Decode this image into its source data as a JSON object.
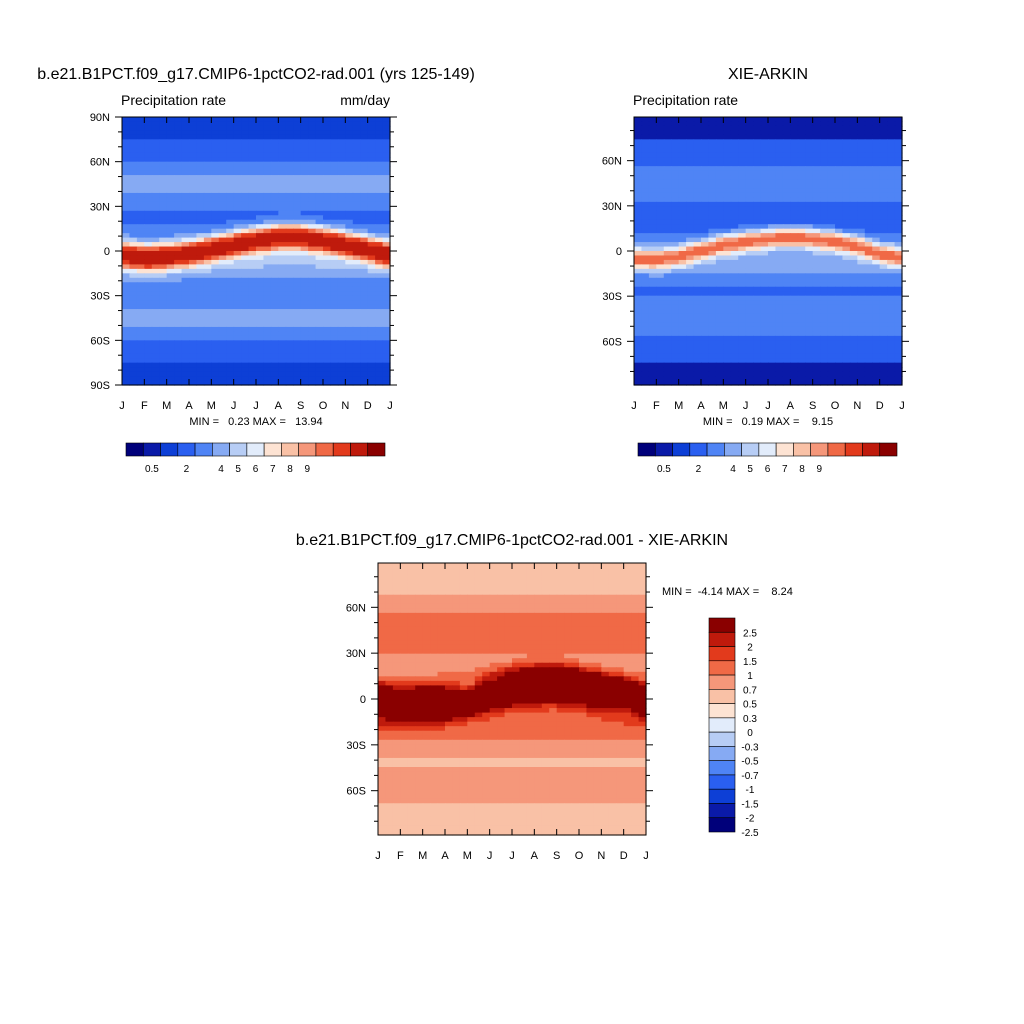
{
  "figure": {
    "panel_model": {
      "title": "b.e21.B1PCT.f09_g17.CMIP6-1pctCO2-rad.001 (yrs 125-149)",
      "left_label": "Precipitation rate",
      "right_label": "mm/day",
      "stats": "MIN =   0.23 MAX =   13.94"
    },
    "panel_obs": {
      "title": "XIE-ARKIN",
      "left_label": "Precipitation rate",
      "stats": "MIN =   0.19 MAX =    9.15"
    },
    "panel_diff": {
      "title": "b.e21.B1PCT.f09_g17.CMIP6-1pctCO2-rad.001 - XIE-ARKIN",
      "stats": "MIN =  -4.14 MAX =    8.24"
    }
  },
  "chart_data": [
    {
      "type": "heatmap",
      "name": "model",
      "title": "b.e21.B1PCT.f09_g17.CMIP6-1pctCO2-rad.001 (yrs 125-149)",
      "subtitle_left": "Precipitation rate",
      "units": "mm/day",
      "x_tick_labels": [
        "J",
        "F",
        "M",
        "A",
        "M",
        "J",
        "J",
        "A",
        "S",
        "O",
        "N",
        "D",
        "J"
      ],
      "y_range": [
        -90,
        90
      ],
      "y_ticks": [
        90,
        60,
        30,
        0,
        -30,
        -60,
        -90
      ],
      "y_tick_labels": [
        "90N",
        "60N",
        "30N",
        "0",
        "30S",
        "60S",
        "90S"
      ],
      "colorbar_tick_labels": [
        "0.5",
        "2",
        "4",
        "5",
        "6",
        "7",
        "8",
        "9"
      ],
      "colorbar_levels": [
        0.2,
        0.5,
        1,
        2,
        3,
        4,
        5,
        6,
        7,
        8,
        9,
        10,
        12
      ],
      "colors": [
        "#00007a",
        "#0a1aa8",
        "#0d3fd6",
        "#2a5ff0",
        "#4f84f5",
        "#86aaf3",
        "#b7cdf5",
        "#e2ecfb",
        "#fde3d3",
        "#f9c1a6",
        "#f5977a",
        "#f06946",
        "#e23a1c",
        "#bf1a0c",
        "#8a0000"
      ],
      "min": 0.23,
      "max": 13.94,
      "itcz_center_by_month": [
        -3,
        -5,
        -4,
        -2,
        1,
        4,
        7,
        9,
        9,
        7,
        4,
        1,
        -3
      ],
      "itcz_peak": 13.5
    },
    {
      "type": "heatmap",
      "name": "observations",
      "title": "XIE-ARKIN",
      "subtitle_left": "Precipitation rate",
      "x_tick_labels": [
        "J",
        "F",
        "M",
        "A",
        "M",
        "J",
        "J",
        "A",
        "S",
        "O",
        "N",
        "D",
        "J"
      ],
      "y_range": [
        -89,
        89
      ],
      "y_ticks": [
        60,
        30,
        0,
        -30,
        -60
      ],
      "y_tick_labels": [
        "60N",
        "30N",
        "0",
        "30S",
        "60S"
      ],
      "colorbar_tick_labels": [
        "0.5",
        "2",
        "4",
        "5",
        "6",
        "7",
        "8",
        "9"
      ],
      "colorbar_levels": [
        0.2,
        0.5,
        1,
        2,
        3,
        4,
        5,
        6,
        7,
        8,
        9,
        10,
        12
      ],
      "colors": [
        "#00007a",
        "#0a1aa8",
        "#0d3fd6",
        "#2a5ff0",
        "#4f84f5",
        "#86aaf3",
        "#b7cdf5",
        "#e2ecfb",
        "#fde3d3",
        "#f9c1a6",
        "#f5977a",
        "#f06946",
        "#e23a1c",
        "#bf1a0c",
        "#8a0000"
      ],
      "min": 0.19,
      "max": 9.15,
      "itcz_center_by_month": [
        -5,
        -6,
        -4,
        0,
        4,
        6,
        8,
        9,
        8,
        6,
        3,
        -2,
        -5
      ],
      "itcz_peak": 8.9
    },
    {
      "type": "heatmap",
      "name": "difference",
      "title": "b.e21.B1PCT.f09_g17.CMIP6-1pctCO2-rad.001 - XIE-ARKIN",
      "x_tick_labels": [
        "J",
        "F",
        "M",
        "A",
        "M",
        "J",
        "J",
        "A",
        "S",
        "O",
        "N",
        "D",
        "J"
      ],
      "y_range": [
        -89,
        89
      ],
      "y_ticks": [
        60,
        30,
        0,
        -30,
        -60
      ],
      "y_tick_labels": [
        "60N",
        "30N",
        "0",
        "30S",
        "60S"
      ],
      "colorbar_tick_labels": [
        "2.5",
        "2",
        "1.5",
        "1",
        "0.7",
        "0.5",
        "0.3",
        "0",
        "-0.3",
        "-0.5",
        "-0.7",
        "-1",
        "-1.5",
        "-2",
        "-2.5"
      ],
      "colorbar_levels": [
        -3,
        -2.5,
        -2,
        -1.5,
        -1,
        -0.7,
        -0.5,
        -0.3,
        0,
        0.3,
        0.5,
        0.7,
        1,
        1.5,
        2,
        2.5,
        3
      ],
      "colors": [
        "#00007a",
        "#0a1aa8",
        "#0d3fd6",
        "#2a5ff0",
        "#4f84f5",
        "#86aaf3",
        "#b7cdf5",
        "#e2ecfb",
        "#fde3d3",
        "#f9c1a6",
        "#f5977a",
        "#f06946",
        "#e23a1c",
        "#bf1a0c",
        "#8a0000"
      ],
      "min": -4.14,
      "max": 8.24
    }
  ]
}
